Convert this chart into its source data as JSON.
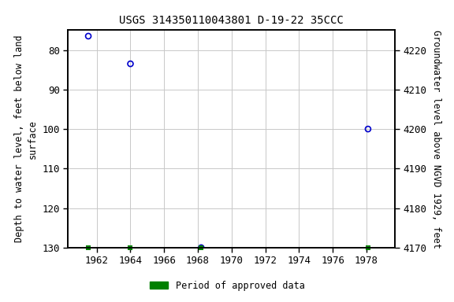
{
  "title": "USGS 314350110043801 D-19-22 35CCC",
  "ylabel_left": "Depth to water level, feet below land\nsurface",
  "ylabel_right": "Groundwater level above NGVD 1929, feet",
  "data_points": [
    {
      "year": 1961.5,
      "depth": 76.5
    },
    {
      "year": 1964.0,
      "depth": 83.5
    },
    {
      "year": 1968.2,
      "depth": 130.0
    },
    {
      "year": 1978.1,
      "depth": 100.0
    }
  ],
  "approved_markers": [
    1961.5,
    1964.0,
    1968.2,
    1978.1
  ],
  "xlim": [
    1960.3,
    1979.7
  ],
  "ylim_top": 75,
  "ylim_bottom": 130,
  "ylim_right_bottom": 4170,
  "ylim_right_top": 4225,
  "xticks": [
    1962,
    1964,
    1966,
    1968,
    1970,
    1972,
    1974,
    1976,
    1978
  ],
  "yticks_left": [
    80,
    90,
    100,
    110,
    120,
    130
  ],
  "yticks_right": [
    4170,
    4180,
    4190,
    4200,
    4210,
    4220
  ],
  "grid_color": "#c8c8c8",
  "point_color": "#0000cc",
  "approved_color": "#008000",
  "bg_color": "#ffffff",
  "title_fontsize": 10,
  "label_fontsize": 8.5,
  "tick_fontsize": 9,
  "legend_label": "Period of approved data"
}
